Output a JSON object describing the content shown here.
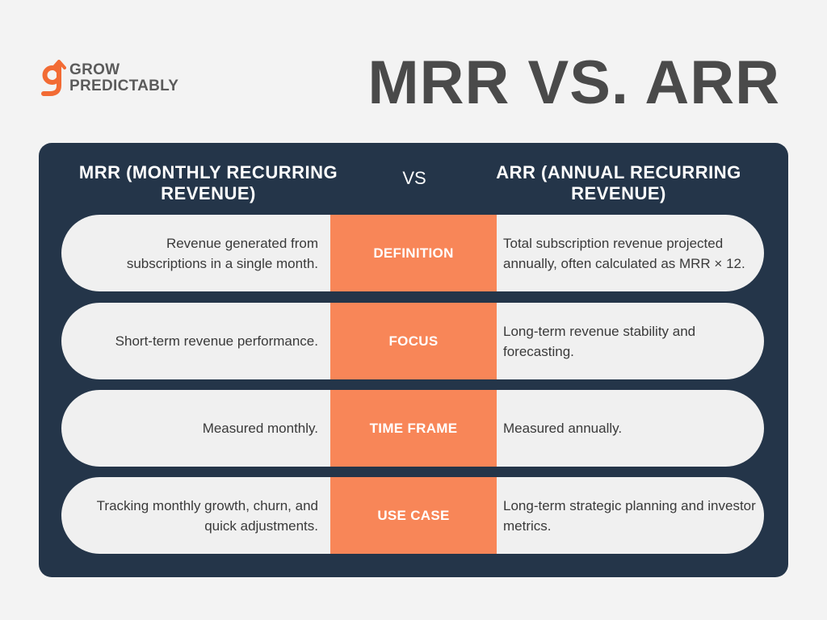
{
  "brand": {
    "line1": "GROW",
    "line2": "PREDICTABLY",
    "icon": "g-arrow-logo-icon",
    "accent": "#f26b34"
  },
  "title": "MRR VS. ARR",
  "colors": {
    "panel": "#243549",
    "accent": "#f88658",
    "row": "#f0f0f0",
    "background": "#f3f3f3"
  },
  "headers": {
    "left": "MRR (MONTHLY RECURRING REVENUE)",
    "vs": "VS",
    "right": "ARR (ANNUAL RECURRING REVENUE)"
  },
  "rows": [
    {
      "label": "DEFINITION",
      "mrr": "Revenue generated from subscriptions in a single month.",
      "arr": "Total subscription revenue projected annually, often calculated as MRR × 12."
    },
    {
      "label": "FOCUS",
      "mrr": "Short-term revenue performance.",
      "arr": "Long-term revenue stability and forecasting."
    },
    {
      "label": "TIME FRAME",
      "mrr": "Measured monthly.",
      "arr": "Measured annually."
    },
    {
      "label": "USE CASE",
      "mrr": "Tracking monthly growth, churn, and quick adjustments.",
      "arr": "Long-term strategic planning and investor metrics."
    }
  ]
}
